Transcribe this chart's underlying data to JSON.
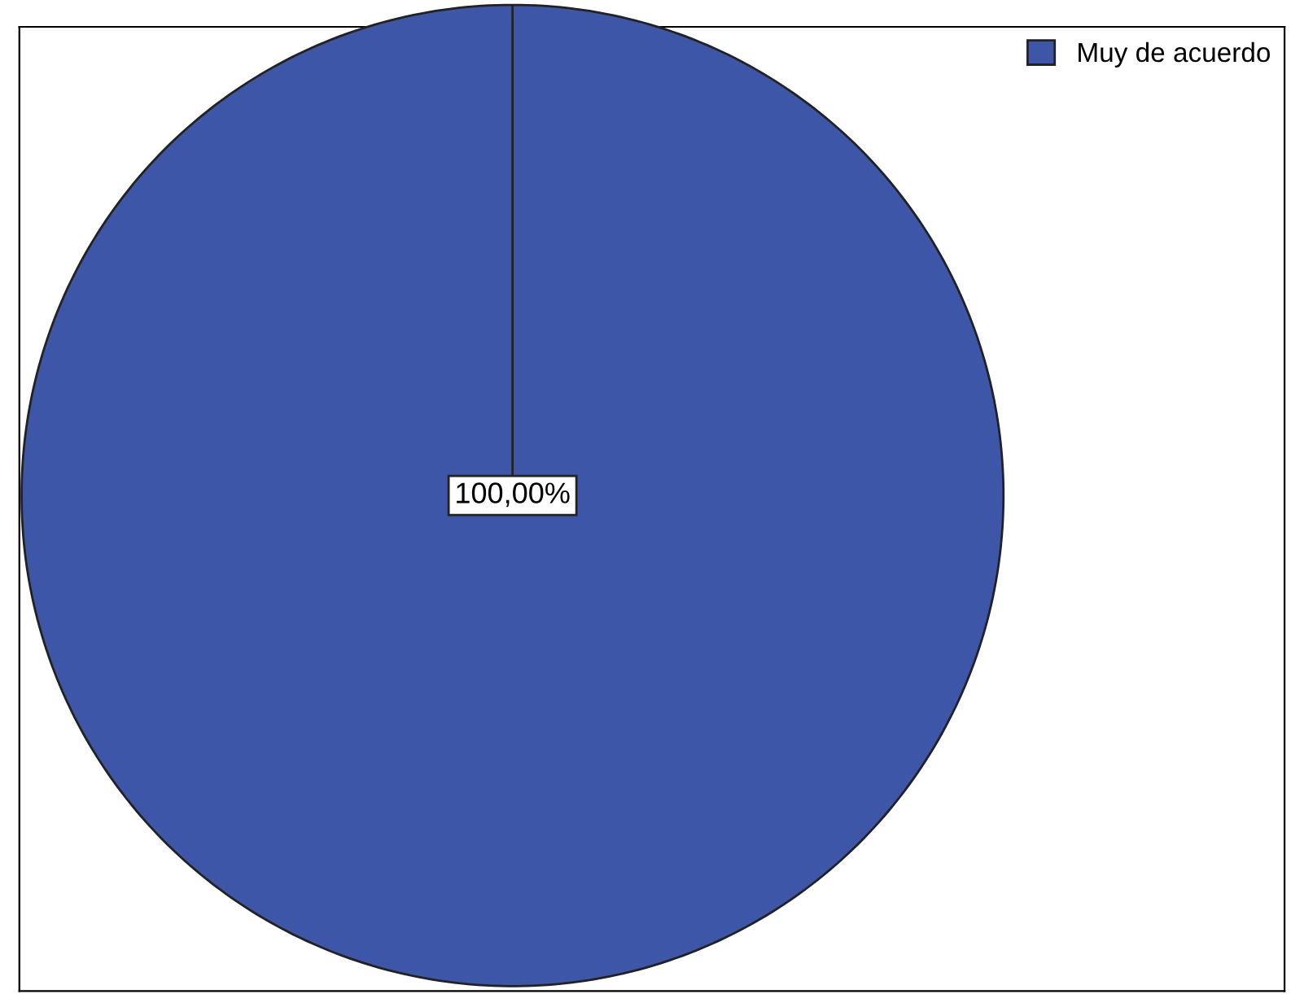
{
  "chart_data": {
    "type": "pie",
    "categories": [
      "Muy de acuerdo"
    ],
    "values": [
      100
    ],
    "colors": [
      "#3e56a8"
    ],
    "value_labels": [
      "100,00%"
    ],
    "legend": "top right"
  }
}
